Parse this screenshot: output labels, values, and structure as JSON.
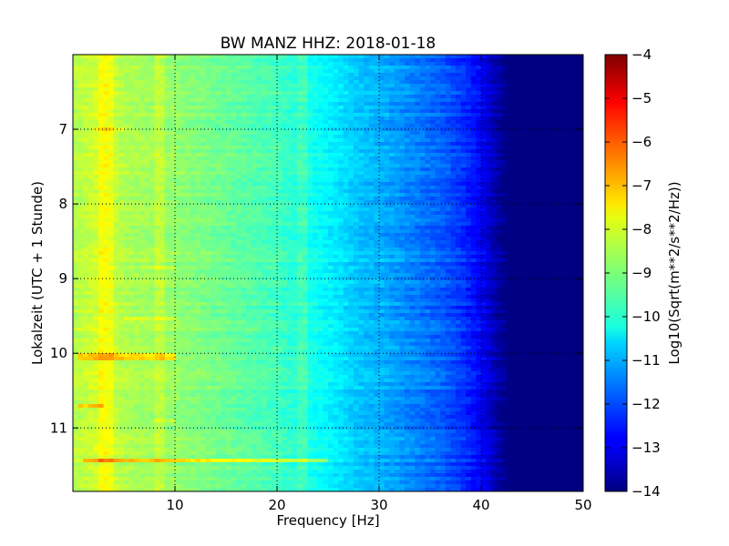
{
  "chart_data": {
    "type": "heatmap",
    "title": "BW MANZ HHZ: 2018-01-18",
    "xlabel": "Frequency [Hz]",
    "ylabel": "Lokalzeit (UTC + 1 Stunde)",
    "xlim": [
      0,
      50
    ],
    "ylim": [
      6.0,
      11.85
    ],
    "y_inverted": true,
    "x_ticks": [
      10,
      20,
      30,
      40,
      50
    ],
    "x_tick_labels": [
      "10",
      "20",
      "30",
      "40",
      "50"
    ],
    "y_ticks": [
      7,
      8,
      9,
      10,
      11
    ],
    "y_tick_labels": [
      "7",
      "8",
      "9",
      "10",
      "11"
    ],
    "grid": true,
    "colormap": "jet",
    "colorbar": {
      "label": "Log10(Sqrt(m**2/s**2/Hz))",
      "range": [
        -14,
        -4
      ],
      "ticks": [
        -4,
        -5,
        -6,
        -7,
        -8,
        -9,
        -10,
        -11,
        -12,
        -13,
        -14
      ],
      "tick_labels": [
        "−4",
        "−5",
        "−6",
        "−7",
        "−8",
        "−9",
        "−10",
        "−11",
        "−12",
        "−13",
        "−14"
      ]
    },
    "spectrum_profile": {
      "frequency_hz": [
        0,
        3,
        5,
        10,
        15,
        20,
        25,
        28,
        30,
        33,
        36,
        38,
        40,
        41,
        42,
        43,
        50
      ],
      "log_amplitude": [
        -8.5,
        -8.1,
        -8.5,
        -8.8,
        -9.2,
        -9.6,
        -10.3,
        -10.8,
        -11.0,
        -11.4,
        -11.8,
        -12.2,
        -12.8,
        -13.3,
        -13.8,
        -14,
        -14
      ]
    },
    "line_artifacts_hz": [
      3.3,
      8.5,
      22.6
    ],
    "high_energy_bands": [
      {
        "time": 7.0,
        "f_start": 2,
        "f_end": 5,
        "boost": 0.6
      },
      {
        "time": 8.85,
        "f_start": 7,
        "f_end": 10,
        "boost": 0.4
      },
      {
        "time": 9.55,
        "f_start": 5,
        "f_end": 10,
        "boost": 0.5
      },
      {
        "time": 10.05,
        "f_start": 0.5,
        "f_end": 10,
        "boost": 1.1
      },
      {
        "time": 10.7,
        "f_start": 0.5,
        "f_end": 3,
        "boost": 1.1
      },
      {
        "time": 10.9,
        "f_start": 8,
        "f_end": 10,
        "boost": 0.4
      },
      {
        "time": 11.43,
        "f_start": 1,
        "f_end": 25,
        "boost": 1.3
      }
    ]
  }
}
